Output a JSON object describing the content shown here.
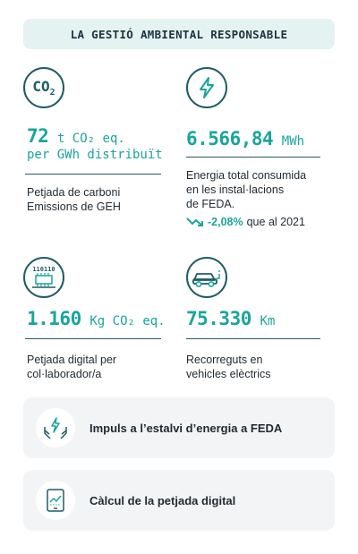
{
  "header": {
    "title": "LA GESTIÓ AMBIENTAL RESPONSABLE"
  },
  "stats": {
    "co2": {
      "icon_text": "CO",
      "icon_sub": "2",
      "value": "72",
      "unit": "t CO₂ eq.",
      "unit_line2": "per GWh distribuït",
      "desc_line1": "Petjada de carboni",
      "desc_line2": "Emissions de GEH"
    },
    "energy": {
      "value": "6.566,84",
      "unit": "MWh",
      "desc_line1": "Energia total consumida",
      "desc_line2": "en les instal·lacions",
      "desc_line3": "de FEDA.",
      "delta_pct": "-2,08%",
      "delta_text": "que al 2021"
    },
    "digital": {
      "icon_text": "110110",
      "value": "1.160",
      "unit": "Kg CO₂ eq.",
      "desc_line1": "Petjada digital per",
      "desc_line2": "col·laborador/a"
    },
    "ev": {
      "value": "75.330",
      "unit": "Km",
      "desc_line1": "Recorreguts en",
      "desc_line2": "vehicles elèctrics"
    }
  },
  "cards": [
    {
      "label": "Impuls a l’estalvi d’energia a FEDA",
      "icon": "hands-lightning-icon"
    },
    {
      "label": "Càlcul de la petjada digital",
      "icon": "tablet-chart-icon"
    }
  ],
  "colors": {
    "accent": "#1aa59c",
    "dark": "#1f5d63",
    "header_bg": "#e4f3f2",
    "card_bg": "#f3f4f5"
  }
}
